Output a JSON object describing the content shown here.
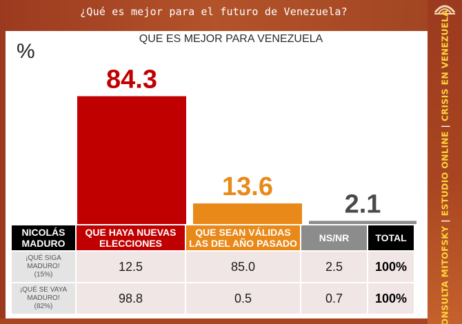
{
  "header": {
    "question": "¿Qué es mejor para el futuro de Venezuela?"
  },
  "side_banner": {
    "part1": "CONSULTA MITOFSKY",
    "separator1": " | ",
    "part2": "ESTUDIO ONLINE",
    "separator2": " | ",
    "part3": "CRISIS EN VENEZUELA"
  },
  "chart_data": {
    "type": "bar",
    "title": "QUE ES MEJOR PARA VENEZUELA",
    "unit": "%",
    "categories": [
      "QUE HAYA NUEVAS ELECCIONES",
      "QUE SEAN VÁLIDAS LAS DEL AÑO PASADO",
      "NS/NR"
    ],
    "values": [
      84.3,
      13.6,
      2.1
    ],
    "value_labels": [
      "84.3",
      "13.6",
      "2.1"
    ],
    "colors": [
      "#c00000",
      "#e8891a",
      "#8c8c8c"
    ],
    "ylim": [
      0,
      100
    ],
    "grid": false,
    "legend": "none"
  },
  "table": {
    "header": {
      "first_line1": "NICOLÁS",
      "first_line2": "MADURO",
      "col1_line1": "QUE HAYA NUEVAS",
      "col1_line2": "ELECCIONES",
      "col2_line1": "QUE SEAN VÁLIDAS",
      "col2_line2": "LAS DEL AÑO PASADO",
      "col3": "NS/NR",
      "col4": "TOTAL"
    },
    "rows": [
      {
        "label_line1": "¡QUÉ SIGA",
        "label_line2": "MADURO!",
        "label_pct": "(15%)",
        "v1": "12.5",
        "v2": "85.0",
        "v3": "2.5",
        "total": "100%"
      },
      {
        "label_line1": "¡QUÉ SE VAYA",
        "label_line2": "MADURO!",
        "label_pct": "(82%)",
        "v1": "98.8",
        "v2": "0.5",
        "v3": "0.7",
        "total": "100%"
      }
    ]
  }
}
